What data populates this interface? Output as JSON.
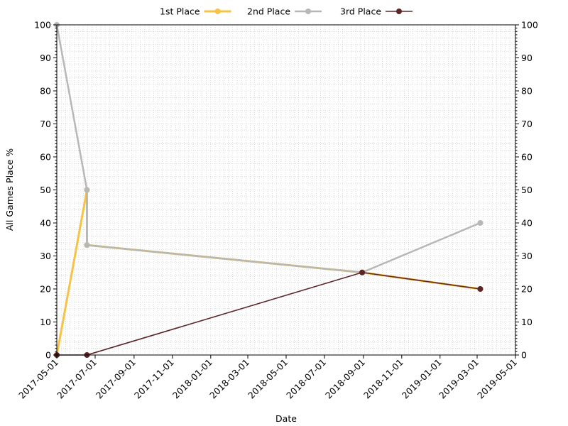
{
  "chart_data": {
    "type": "line",
    "title": "",
    "xlabel": "Date",
    "ylabel": "All Games Place %",
    "x_axis_type": "date",
    "xlim": [
      "2017-05-01",
      "2019-05-01"
    ],
    "ylim": [
      0,
      100
    ],
    "x_ticks": [
      "2017-05-01",
      "2017-07-01",
      "2017-09-01",
      "2017-11-01",
      "2018-01-01",
      "2018-03-01",
      "2018-05-01",
      "2018-07-01",
      "2018-09-01",
      "2018-11-01",
      "2019-01-01",
      "2019-03-01",
      "2019-05-01"
    ],
    "y_ticks": [
      0,
      10,
      20,
      30,
      40,
      50,
      60,
      70,
      80,
      90,
      100
    ],
    "grid": true,
    "right_axis": true,
    "legend": {
      "placement": "top",
      "entries": [
        "1st Place",
        "2nd Place",
        "3rd Place"
      ]
    },
    "series": [
      {
        "name": "1st Place",
        "color": "#f6c344",
        "points": [
          {
            "x": "2017-05-01",
            "y": 0
          },
          {
            "x": "2017-06-18",
            "y": 50
          },
          {
            "x": "2017-06-18",
            "y": 33.3
          },
          {
            "x": "2018-08-30",
            "y": 25
          },
          {
            "x": "2019-03-06",
            "y": 20
          }
        ]
      },
      {
        "name": "2nd Place",
        "color": "#b7b7b5",
        "points": [
          {
            "x": "2017-05-01",
            "y": 100
          },
          {
            "x": "2017-06-18",
            "y": 50
          },
          {
            "x": "2017-06-18",
            "y": 33.3
          },
          {
            "x": "2018-08-30",
            "y": 25
          },
          {
            "x": "2019-03-06",
            "y": 40
          }
        ]
      },
      {
        "name": "3rd Place",
        "color": "#5c2626",
        "points": [
          {
            "x": "2017-05-01",
            "y": 0
          },
          {
            "x": "2017-06-18",
            "y": 0
          },
          {
            "x": "2018-08-30",
            "y": 25
          },
          {
            "x": "2019-03-06",
            "y": 20
          }
        ]
      }
    ]
  }
}
